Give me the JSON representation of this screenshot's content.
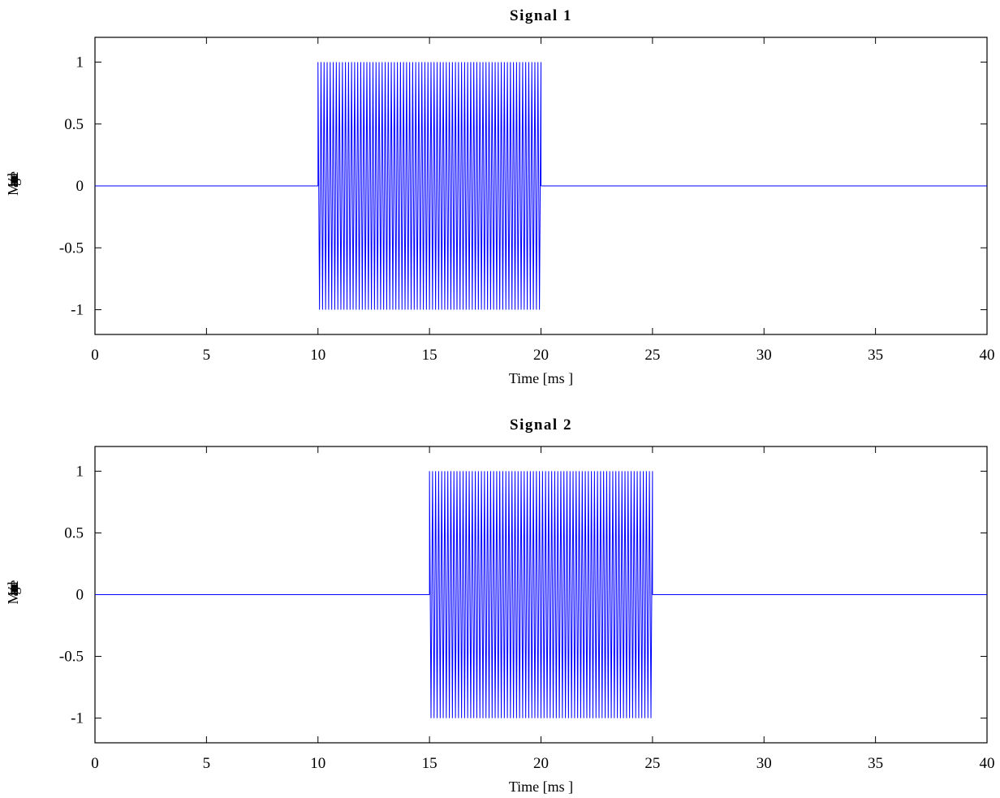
{
  "chart_data": [
    {
      "type": "line",
      "title": "Signal 1",
      "xlabel": "Time [ms ]",
      "ylabel": "Magnitude",
      "xlim": [
        0,
        40
      ],
      "ylim": [
        -1.2,
        1.2
      ],
      "xticks": [
        0,
        5,
        10,
        15,
        20,
        25,
        30,
        35,
        40
      ],
      "xtick_labels": [
        "0",
        "5",
        "10",
        "15",
        "20",
        "25",
        "30",
        "35",
        "40"
      ],
      "yticks": [
        1,
        0.5,
        0,
        -0.5,
        -1
      ],
      "ytick_labels": [
        "1",
        "0.5",
        "0",
        "-0.5",
        "-1"
      ],
      "grid": false,
      "series": [
        {
          "color": "#0000ff",
          "segments": [
            {
              "kind": "constant",
              "x": [
                0,
                10
              ],
              "y": 0
            },
            {
              "kind": "oscillation",
              "x": [
                10,
                20
              ],
              "amplitude": 1,
              "cycles_per_ms": 7.3
            },
            {
              "kind": "constant",
              "x": [
                20,
                40
              ],
              "y": 0
            }
          ]
        }
      ]
    },
    {
      "type": "line",
      "title": "Signal 2",
      "xlabel": "Time [ms ]",
      "ylabel": "Magnitude",
      "xlim": [
        0,
        40
      ],
      "ylim": [
        -1.2,
        1.2
      ],
      "xticks": [
        0,
        5,
        10,
        15,
        20,
        25,
        30,
        35,
        40
      ],
      "xtick_labels": [
        "0",
        "5",
        "10",
        "15",
        "20",
        "25",
        "30",
        "35",
        "40"
      ],
      "yticks": [
        1,
        0.5,
        0,
        -0.5,
        -1
      ],
      "ytick_labels": [
        "1",
        "0.5",
        "0",
        "-0.5",
        "-1"
      ],
      "grid": false,
      "series": [
        {
          "color": "#0000ff",
          "segments": [
            {
              "kind": "constant",
              "x": [
                0,
                15
              ],
              "y": 0
            },
            {
              "kind": "oscillation",
              "x": [
                15,
                25
              ],
              "amplitude": 1,
              "cycles_per_ms": 7.3
            },
            {
              "kind": "constant",
              "x": [
                25,
                40
              ],
              "y": 0
            }
          ]
        }
      ]
    }
  ]
}
